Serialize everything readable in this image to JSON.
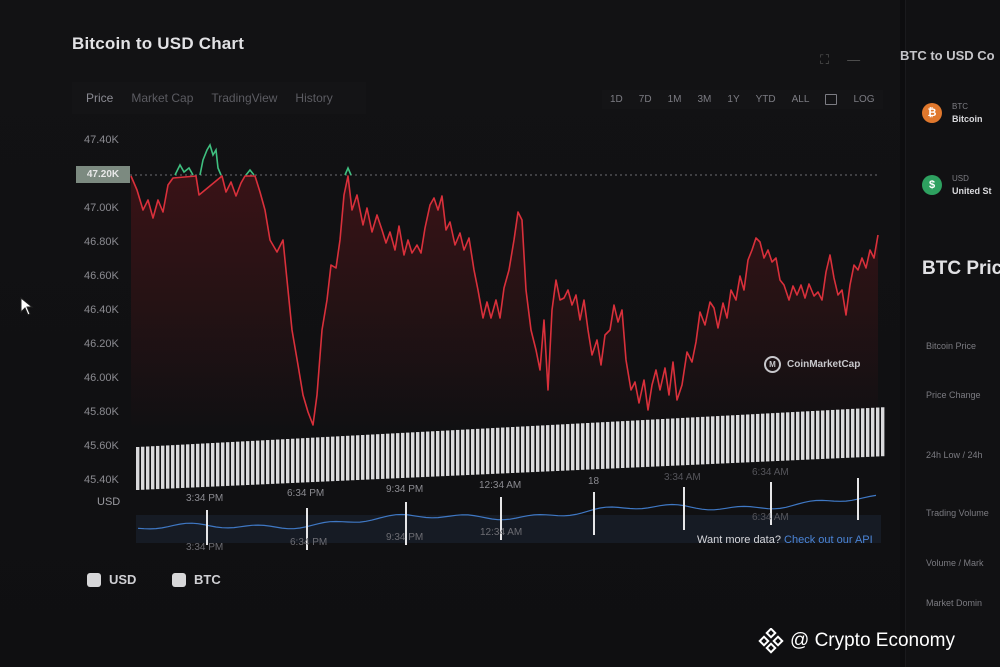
{
  "header": {
    "title": "Bitcoin to USD Chart"
  },
  "tabs": [
    "Price",
    "Market Cap",
    "TradingView",
    "History"
  ],
  "ranges": [
    "1D",
    "7D",
    "1M",
    "3M",
    "1Y",
    "YTD",
    "ALL",
    "LOG"
  ],
  "price_tag": "47.20K",
  "y_labels": [
    "47.40K",
    "47.00K",
    "46.80K",
    "46.60K",
    "46.40K",
    "46.20K",
    "46.00K",
    "45.80K",
    "45.60K",
    "45.40K"
  ],
  "x_labels": [
    "3:34 PM",
    "6:34 PM",
    "9:34 PM",
    "12:34 AM",
    "18",
    "3:34 AM",
    "6:34 AM"
  ],
  "nav_x_labels": [
    "3:34 PM",
    "6:34 PM",
    "9:34 PM",
    "12:34 AM",
    "6:34 AM"
  ],
  "axis_currency": "USD",
  "legend": {
    "usd": "USD",
    "btc": "BTC"
  },
  "want_more": {
    "text": "Want more data?",
    "link": "Check out our API"
  },
  "watermark_chart": "CoinMarketCap",
  "watermark_photo": "@ Crypto Economy",
  "side": {
    "title": "BTC to USD Co",
    "coins": [
      {
        "ticker": "BTC",
        "name": "Bitcoin"
      },
      {
        "ticker": "USD",
        "name": "United St"
      }
    ],
    "heading": "BTC Price",
    "items": [
      "Bitcoin Price",
      "Price Change",
      "24h Low / 24h",
      "Trading Volume",
      "Volume / Mark",
      "Market Domin"
    ]
  },
  "colors": {
    "line_down": "#d9303b",
    "line_up": "#3fbf7f",
    "nav_line": "#3f78c4",
    "api_link": "#4b84d6"
  }
}
